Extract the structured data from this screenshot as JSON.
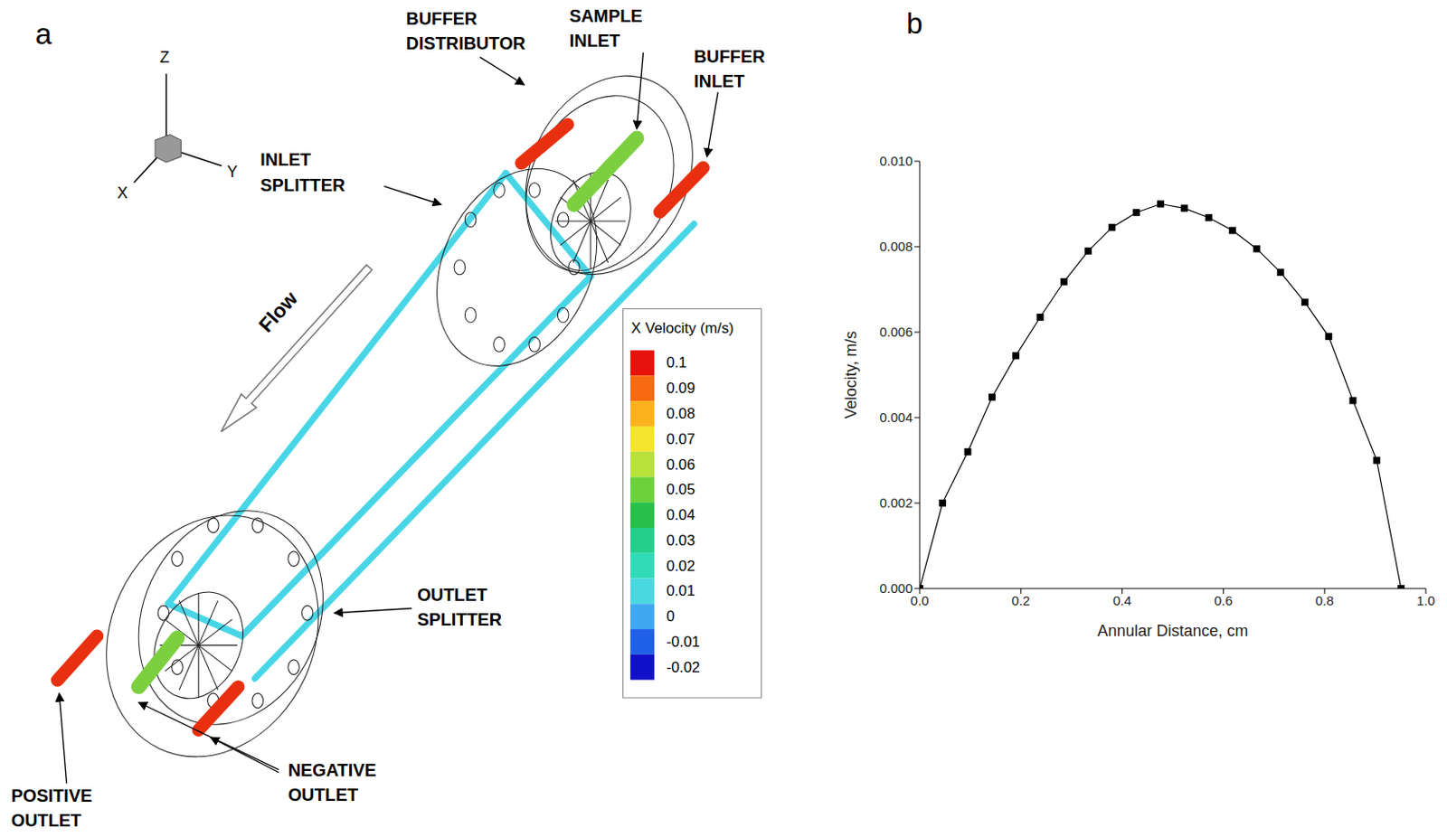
{
  "diagram": {
    "panel_label": "a",
    "axes": {
      "z": "Z",
      "x": "X",
      "y": "Y"
    },
    "labels": {
      "buffer_distributor": "BUFFER DISTRIBUTOR",
      "sample_inlet": "SAMPLE INLET",
      "buffer_inlet": "BUFFER INLET",
      "inlet_splitter": "INLET SPLITTER",
      "flow": "Flow",
      "outlet_splitter": "OUTLET SPLITTER",
      "positive_outlet": "POSITIVE OUTLET",
      "negative_outlet": "NEGATIVE OUTLET"
    },
    "colorbar": {
      "title": "X Velocity (m/s)",
      "ticks": [
        0.1,
        0.09,
        0.08,
        0.07,
        0.06,
        0.05,
        0.04,
        0.03,
        0.02,
        0.01,
        0,
        -0.01,
        -0.02
      ],
      "colors": [
        "#e8120c",
        "#f86a10",
        "#fcb21c",
        "#f4e42c",
        "#b8e23a",
        "#6cd23c",
        "#28c04a",
        "#22d08c",
        "#30dcb8",
        "#4ad8e0",
        "#40a8f0",
        "#2060e8",
        "#1010c8"
      ]
    }
  },
  "chart_data": {
    "type": "line",
    "panel_label": "b",
    "x_label": "Annular Distance, cm",
    "y_label": "Velocity, m/s",
    "x": [
      0,
      0.045,
      0.095,
      0.143,
      0.19,
      0.238,
      0.285,
      0.333,
      0.38,
      0.428,
      0.476,
      0.523,
      0.571,
      0.618,
      0.666,
      0.713,
      0.761,
      0.808,
      0.856,
      0.903,
      0.951
    ],
    "values": [
      0,
      0.002,
      0.0032,
      0.00448,
      0.00545,
      0.00635,
      0.00718,
      0.0079,
      0.00845,
      0.0088,
      0.009,
      0.0089,
      0.00868,
      0.00838,
      0.00795,
      0.0074,
      0.0067,
      0.0059,
      0.0044,
      0.003,
      0
    ],
    "color": "#000000",
    "marker": "square",
    "line_style": "solid",
    "xlim": [
      0,
      1
    ],
    "xticks": [
      {
        "value": 0,
        "label": "0.0"
      },
      {
        "value": 0.2,
        "label": "0.2"
      },
      {
        "value": 0.4,
        "label": "0.4"
      },
      {
        "value": 0.6,
        "label": "0.6"
      },
      {
        "value": 0.8,
        "label": "0.8"
      },
      {
        "value": 1,
        "label": "1.0"
      }
    ],
    "ylim": [
      0,
      0.01
    ],
    "yticks": [
      {
        "value": 0,
        "label": "0.000"
      },
      {
        "value": 0.002,
        "label": "0.002"
      },
      {
        "value": 0.004,
        "label": "0.004"
      },
      {
        "value": 0.006,
        "label": "0.006"
      },
      {
        "value": 0.008,
        "label": "0.008"
      },
      {
        "value": 0.01,
        "label": "0.010"
      }
    ]
  }
}
